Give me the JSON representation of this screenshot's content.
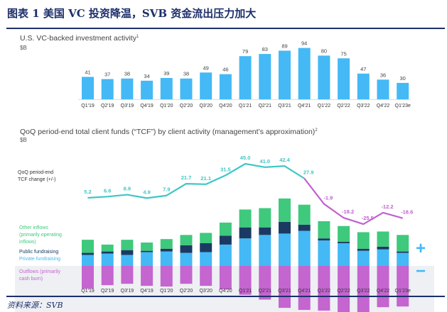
{
  "header": {
    "title": "图表 1   美国 VC 投资降温，SVB 资金流出压力加大"
  },
  "footer": {
    "source": "资料来源：SVB"
  },
  "colors": {
    "navy": "#1c2f6b",
    "bar": "#44b9f6",
    "public": "#1b3a63",
    "other": "#3ec97c",
    "outflow": "#c465d0",
    "teal": "#3fc7c4",
    "purple": "#c062d0",
    "bg": "#eef0f3"
  },
  "chart_data": [
    {
      "type": "bar",
      "title": "U.S. VC-backed investment activity",
      "title_sup": "1",
      "ylabel": "$B",
      "categories": [
        "Q1'19",
        "Q2'19",
        "Q3'19",
        "Q4'19",
        "Q1'20",
        "Q2'20",
        "Q3'20",
        "Q4'20",
        "Q1'21",
        "Q2'21",
        "Q3'21",
        "Q4'21",
        "Q1'22",
        "Q2'22",
        "Q3'22",
        "Q4'22",
        "Q1'23e"
      ],
      "values": [
        41,
        37,
        38,
        34,
        39,
        38,
        49,
        46,
        79,
        83,
        89,
        94,
        80,
        75,
        47,
        36,
        30
      ],
      "ylim": [
        0,
        100
      ]
    },
    {
      "type": "bar",
      "stacked": true,
      "title": "QoQ period-end total client funds (“TCF”) by client activity (management’s approximation)",
      "title_sup": "2",
      "ylabel": "$B",
      "categories": [
        "Q1'19",
        "Q2'19",
        "Q3'19",
        "Q4'19",
        "Q1'20",
        "Q2'20",
        "Q3'20",
        "Q4'20",
        "Q1'21",
        "Q2'21",
        "Q3'21",
        "Q4'21",
        "Q1'22",
        "Q2'22",
        "Q3'22",
        "Q4'22",
        "Q1'23e"
      ],
      "series": [
        {
          "name": "Private fundraising",
          "values": [
            16,
            18,
            16,
            20,
            21,
            19,
            20,
            31,
            40,
            45,
            47,
            51,
            37,
            33,
            22,
            24,
            19
          ]
        },
        {
          "name": "Public fundraising",
          "values": [
            3,
            3,
            7,
            2,
            4,
            11,
            13,
            13,
            16,
            11,
            17,
            9,
            3,
            2,
            3,
            4,
            2
          ]
        },
        {
          "name": "Other inflows (primarily operating inflows)",
          "values": [
            19,
            10,
            15,
            12,
            14,
            15,
            15,
            19,
            26,
            28,
            34,
            29,
            25,
            23,
            24,
            22,
            24
          ]
        },
        {
          "name": "Outflows (primarily cash burn)",
          "values": [
            -33,
            -28,
            -26,
            -29,
            -30,
            -26,
            -29,
            -34,
            -42,
            -49,
            -61,
            -64,
            -65,
            -73,
            -71,
            -60,
            -59
          ]
        }
      ],
      "line": {
        "name": "QoQ period-end TCF change (+/-)",
        "values": [
          5.2,
          6.6,
          8.9,
          4.9,
          7.9,
          21.7,
          21.1,
          31.5,
          45.0,
          41.0,
          42.4,
          27.9,
          -1.9,
          -18.2,
          -25.5,
          -12.2,
          -18.6
        ],
        "labels": [
          "5.2",
          "6.6",
          "8.9",
          "4.9",
          "7.9",
          "21.7",
          "21.1",
          "31.5",
          "45.0",
          "41.0",
          "42.4",
          "27.9",
          "-1.9",
          "-18.2",
          "-25.5",
          "-12.2",
          "-18.6"
        ]
      },
      "legend": {
        "line_1": "QoQ period-end",
        "line_2": "TCF change (+/-)",
        "other_1": "Other inflows",
        "other_2": "(primarily operating",
        "other_3": "inflows)",
        "public": "Public fundraising",
        "private": "Private fundraising",
        "out_1": "Outflows (primarily",
        "out_2": "cash burn)",
        "plus": "+",
        "minus": "−"
      }
    }
  ]
}
